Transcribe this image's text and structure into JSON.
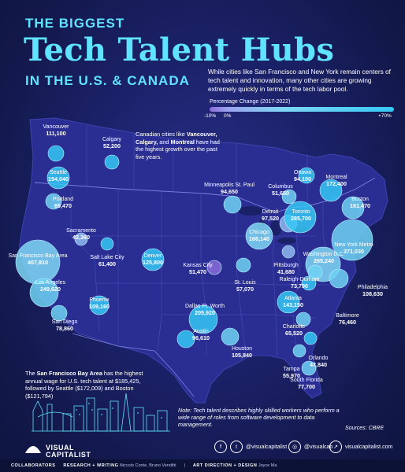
{
  "header": {
    "title_top": "THE BIGGEST",
    "title_main": "Tech Talent Hubs",
    "title_sub": "IN THE U.S. & CANADA",
    "intro": "While cities like San Francisco and New York remain centers of tech talent and innovation, many other cities are growing extremely quickly in terms of the tech labor pool."
  },
  "legend": {
    "title": "Percentage Change (2017-2022)",
    "ticks": [
      "-10%",
      "0%",
      "+70%"
    ],
    "colors": {
      "low": "#8a6cd9",
      "mid": "#7fd7f5",
      "high": "#35c8f5"
    }
  },
  "callouts": {
    "canada_pre": "Canadian cities like ",
    "canada_b1": "Vancouver, Calgary,",
    "canada_mid": " and ",
    "canada_b2": "Montreal",
    "canada_post": " have had the highest growth over the past five years.",
    "sf_pre": "The ",
    "sf_b": "San Francisco Bay Area",
    "sf_post": " has the highest annual wage for U.S. tech talent at $185,425, followed by Seattle ($172,009) and Boston ($121,794)"
  },
  "cities": [
    {
      "name": "Vancouver",
      "value": "111,100"
    },
    {
      "name": "Calgary",
      "value": "52,200"
    },
    {
      "name": "Seattle",
      "value": "194,040"
    },
    {
      "name": "Portland",
      "value": "69,470"
    },
    {
      "name": "Sacramento",
      "value": "42,360"
    },
    {
      "name": "San Francisco Bay Area",
      "value": "407,810"
    },
    {
      "name": "Los Angeles",
      "value": "249,620"
    },
    {
      "name": "San Diego",
      "value": "78,860"
    },
    {
      "name": "Salt Lake City",
      "value": "61,400"
    },
    {
      "name": "Phoenix",
      "value": "109,160"
    },
    {
      "name": "Denver",
      "value": "125,800"
    },
    {
      "name": "Minneapolis St. Paul",
      "value": "94,650"
    },
    {
      "name": "Kansas City",
      "value": "51,470"
    },
    {
      "name": "Dallas Ft. Worth",
      "value": "205,920"
    },
    {
      "name": "Austin",
      "value": "96,610"
    },
    {
      "name": "Houston",
      "value": "105,840"
    },
    {
      "name": "St. Louis",
      "value": "57,070"
    },
    {
      "name": "Chicago",
      "value": "166,140"
    },
    {
      "name": "Detroit",
      "value": "97,520"
    },
    {
      "name": "Columbus",
      "value": "51,650"
    },
    {
      "name": "Ottawa",
      "value": "94,100"
    },
    {
      "name": "Toronto",
      "value": "285,700"
    },
    {
      "name": "Montreal",
      "value": "172,400"
    },
    {
      "name": "Boston",
      "value": "161,470"
    },
    {
      "name": "New York Metro",
      "value": "371,030"
    },
    {
      "name": "Pittsburgh",
      "value": "41,680"
    },
    {
      "name": "Washington D.C.",
      "value": "265,240"
    },
    {
      "name": "Philadelphia",
      "value": "108,630"
    },
    {
      "name": "Baltimore",
      "value": "76,460"
    },
    {
      "name": "Raleigh-Durham",
      "value": "73,790"
    },
    {
      "name": "Atlanta",
      "value": "143,150"
    },
    {
      "name": "Charlotte",
      "value": "65,520"
    },
    {
      "name": "Orlando",
      "value": "47,840"
    },
    {
      "name": "Tampa",
      "value": "55,970"
    },
    {
      "name": "South Florida",
      "value": "77,700"
    }
  ],
  "footer": {
    "note": "Note: Tech talent describes highly skilled workers who perform a wide range of roles from software development to data management.",
    "source": "Sources: CBRE",
    "logo_line1": "VISUAL",
    "logo_line2": "CAPITALIST",
    "social": [
      "@visualcapitalist",
      "@visualcap",
      "visualcapitalist.com"
    ],
    "credits": {
      "label": "COLLABORATORS",
      "research_label": "RESEARCH + WRITING",
      "research_names": "Niccolo Conte, Bruno Venditti",
      "art_label": "ART DIRECTION + DESIGN",
      "art_names": "Joyce Ma"
    }
  }
}
